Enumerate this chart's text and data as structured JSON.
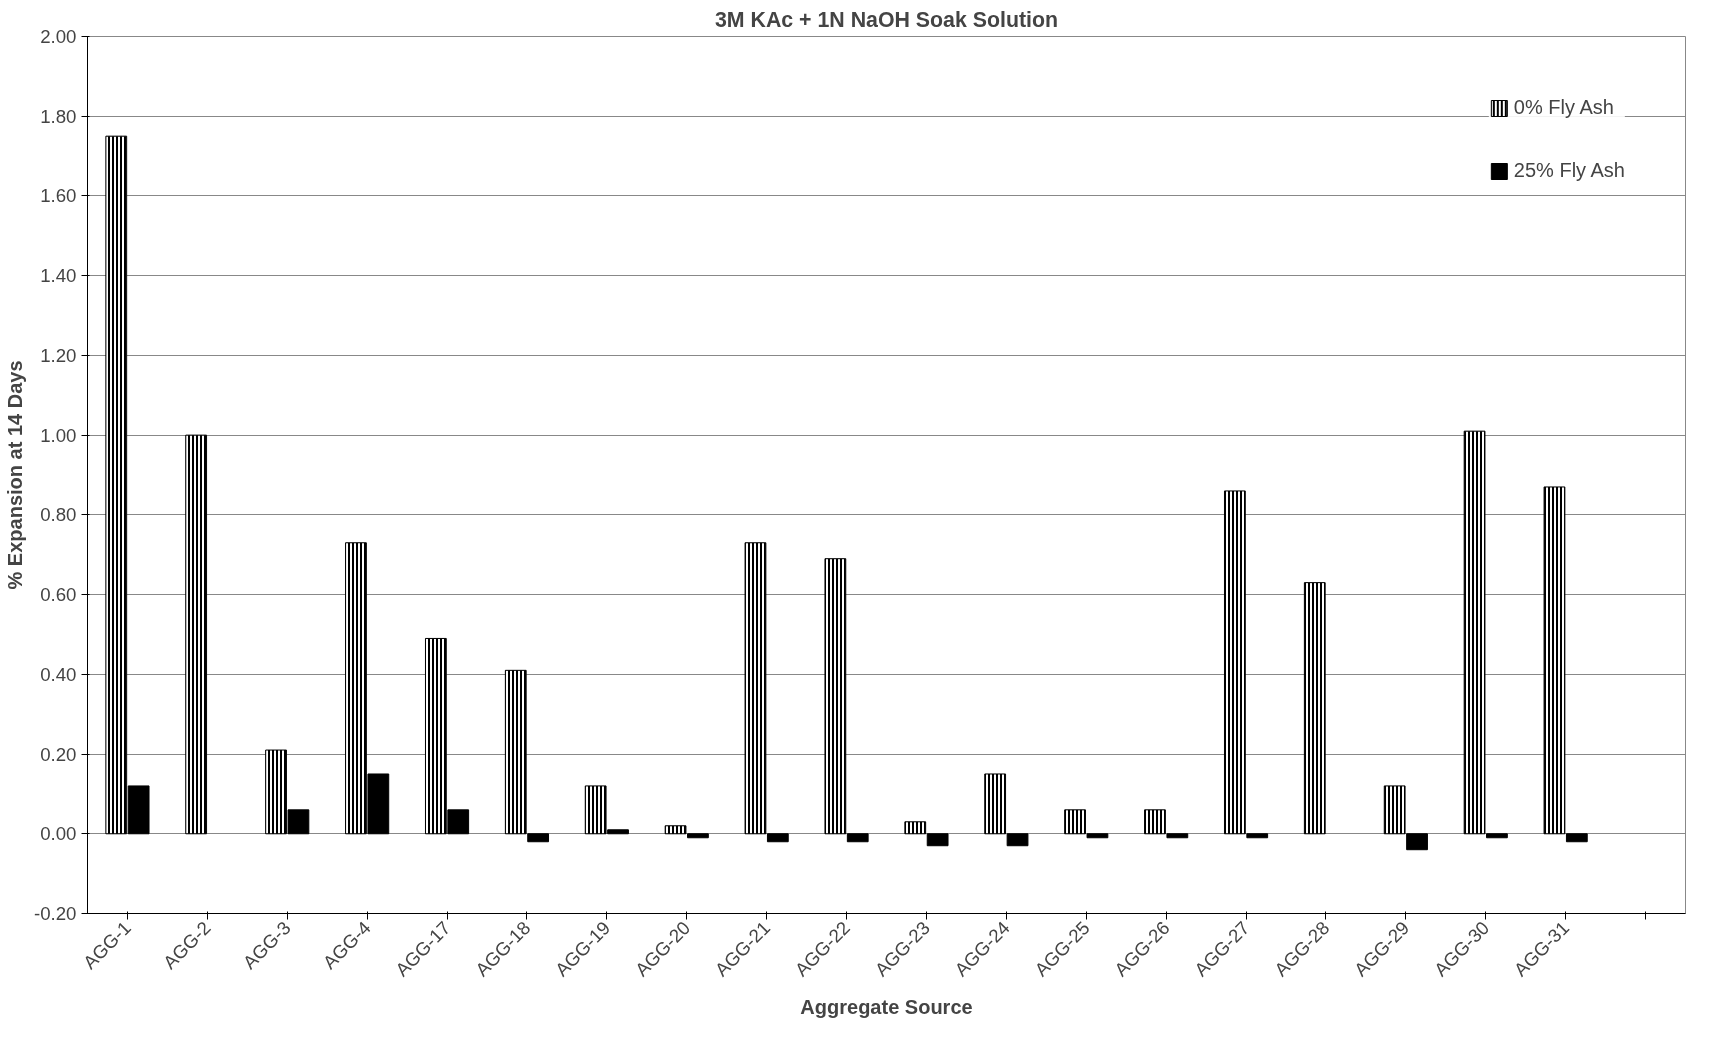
{
  "chart_data": {
    "type": "bar",
    "title": "3M KAc + 1N NaOH Soak Solution",
    "xlabel": "Aggregate Source",
    "ylabel": "% Expansion at 14 Days",
    "categories": [
      "AGG-1",
      "AGG-2",
      "AGG-3",
      "AGG-4",
      "AGG-17",
      "AGG-18",
      "AGG-19",
      "AGG-20",
      "AGG-21",
      "AGG-22",
      "AGG-23",
      "AGG-24",
      "AGG-25",
      "AGG-26",
      "AGG-27",
      "AGG-28",
      "AGG-29",
      "AGG-30",
      "AGG-31",
      null
    ],
    "series": [
      {
        "name": "0% Fly Ash",
        "color": "#000000",
        "values": [
          1.75,
          1.0,
          0.21,
          0.73,
          0.49,
          0.41,
          0.12,
          0.02,
          0.73,
          0.69,
          0.03,
          0.15,
          0.06,
          0.06,
          0.86,
          0.63,
          0.12,
          1.01,
          0.87,
          null
        ]
      },
      {
        "name": "25% Fly Ash",
        "color": "#000000",
        "values": [
          0.12,
          null,
          0.06,
          0.15,
          0.06,
          -0.02,
          0.01,
          -0.01,
          -0.02,
          -0.02,
          -0.03,
          -0.03,
          -0.01,
          -0.01,
          -0.01,
          null,
          -0.04,
          -0.01,
          -0.02,
          null
        ]
      }
    ],
    "ylim": [
      -0.2,
      2.0
    ],
    "yticks": [
      {
        "value": -0.2,
        "label": "-0.20"
      },
      {
        "value": 0,
        "label": "0.00"
      },
      {
        "value": 0.2,
        "label": "0.20"
      },
      {
        "value": 0.4,
        "label": "0.40"
      },
      {
        "value": 0.6,
        "label": "0.60"
      },
      {
        "value": 0.8,
        "label": "0.80"
      },
      {
        "value": 1.0,
        "label": "1.00"
      },
      {
        "value": 1.2,
        "label": "1.20"
      },
      {
        "value": 1.4,
        "label": "1.40"
      },
      {
        "value": 1.6,
        "label": "1.60"
      },
      {
        "value": 1.8,
        "label": "1.80"
      },
      {
        "value": 2.0,
        "label": "2.00"
      }
    ],
    "grid": "y",
    "legend": "top right"
  }
}
